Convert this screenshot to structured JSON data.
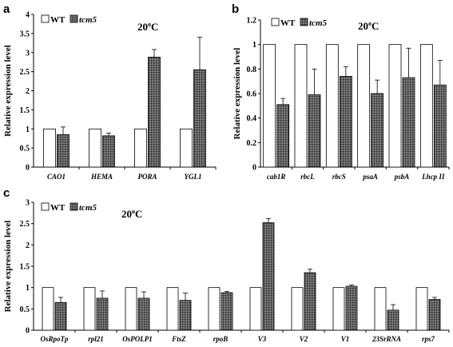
{
  "panels": [
    {
      "letter": "a",
      "temperature": "20",
      "temperature_sup": "o",
      "temperature_unit": "C",
      "legend": [
        "WT",
        "tcm5"
      ]
    },
    {
      "letter": "b",
      "temperature": "20",
      "temperature_sup": "o",
      "temperature_unit": "C",
      "legend": [
        "WT",
        "tcm5"
      ]
    },
    {
      "letter": "c",
      "temperature": "20",
      "temperature_sup": "o",
      "temperature_unit": "C",
      "legend": [
        "WT",
        "tcm5"
      ]
    }
  ],
  "chart_data": [
    {
      "type": "bar",
      "panel": "a",
      "ylabel": "Relative expression level",
      "ylim": [
        0,
        4
      ],
      "yticks": [
        "0",
        "0.5",
        "1",
        "1.5",
        "2",
        "2.5",
        "3",
        "3.5",
        "4"
      ],
      "categories": [
        "CAO1",
        "HEMA",
        "PORA",
        "YGL1"
      ],
      "series": [
        {
          "name": "WT",
          "values": [
            1,
            1,
            1,
            1
          ],
          "errors": [
            0,
            0,
            0,
            0
          ]
        },
        {
          "name": "tcm5",
          "values": [
            0.85,
            0.82,
            2.88,
            2.55
          ],
          "errors": [
            0.2,
            0.07,
            0.2,
            0.85
          ]
        }
      ],
      "colors": {
        "WT": "#ffffff",
        "tcm5": "#555555"
      }
    },
    {
      "type": "bar",
      "panel": "b",
      "ylabel": "Relative expression level",
      "ylim": [
        0,
        1.2
      ],
      "yticks": [
        "0",
        "0.2",
        "0.4",
        "0.6",
        "0.8",
        "1",
        "1.2"
      ],
      "categories": [
        "cab1R",
        "rbcL",
        "rbcS",
        "psaA",
        "psbA",
        "Lhcp II"
      ],
      "series": [
        {
          "name": "WT",
          "values": [
            1,
            1,
            1,
            1,
            1,
            1
          ],
          "errors": [
            0,
            0,
            0,
            0,
            0,
            0
          ]
        },
        {
          "name": "tcm5",
          "values": [
            0.51,
            0.59,
            0.74,
            0.6,
            0.73,
            0.67
          ],
          "errors": [
            0.05,
            0.21,
            0.08,
            0.11,
            0.24,
            0.2
          ]
        }
      ],
      "colors": {
        "WT": "#ffffff",
        "tcm5": "#555555"
      }
    },
    {
      "type": "bar",
      "panel": "c",
      "ylabel": "Relative expression level",
      "ylim": [
        0,
        3
      ],
      "yticks": [
        "0",
        "0.5",
        "1",
        "1.5",
        "2",
        "2.5",
        "3"
      ],
      "categories": [
        "OsRpoTp",
        "rpl21",
        "OsPOLP1",
        "FtsZ",
        "rpoB",
        "V3",
        "V2",
        "V1",
        "23SrRNA",
        "rps7"
      ],
      "series": [
        {
          "name": "WT",
          "values": [
            1,
            1,
            1,
            1,
            1,
            1,
            1,
            1,
            1,
            1
          ],
          "errors": [
            0,
            0,
            0,
            0,
            0,
            0,
            0,
            0,
            0,
            0
          ]
        },
        {
          "name": "tcm5",
          "values": [
            0.65,
            0.75,
            0.75,
            0.7,
            0.88,
            2.52,
            1.35,
            1.03,
            0.47,
            0.72
          ],
          "errors": [
            0.12,
            0.17,
            0.15,
            0.17,
            0.03,
            0.1,
            0.08,
            0.03,
            0.13,
            0.05
          ]
        }
      ],
      "colors": {
        "WT": "#ffffff",
        "tcm5": "#555555"
      }
    }
  ]
}
